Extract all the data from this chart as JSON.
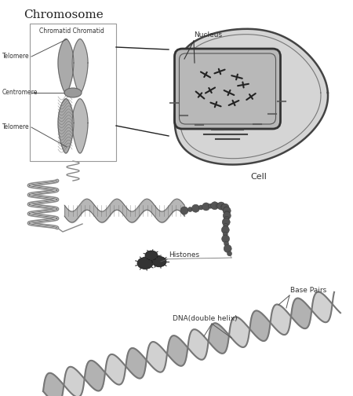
{
  "title": "Chromosome",
  "bg_color": "#ffffff",
  "labels": {
    "chromatid": "Chromatid Chromatid",
    "telomere_top": "Telomere",
    "centromere": "Centromere",
    "telomere_bot": "Telomere",
    "nucleus": "Nucleus",
    "cell": "Cell",
    "histones": "Histones",
    "dna": "DNA(double helix)",
    "base_pairs": "Base Pairs"
  },
  "figsize": [
    4.5,
    5.04
  ],
  "dpi": 100
}
